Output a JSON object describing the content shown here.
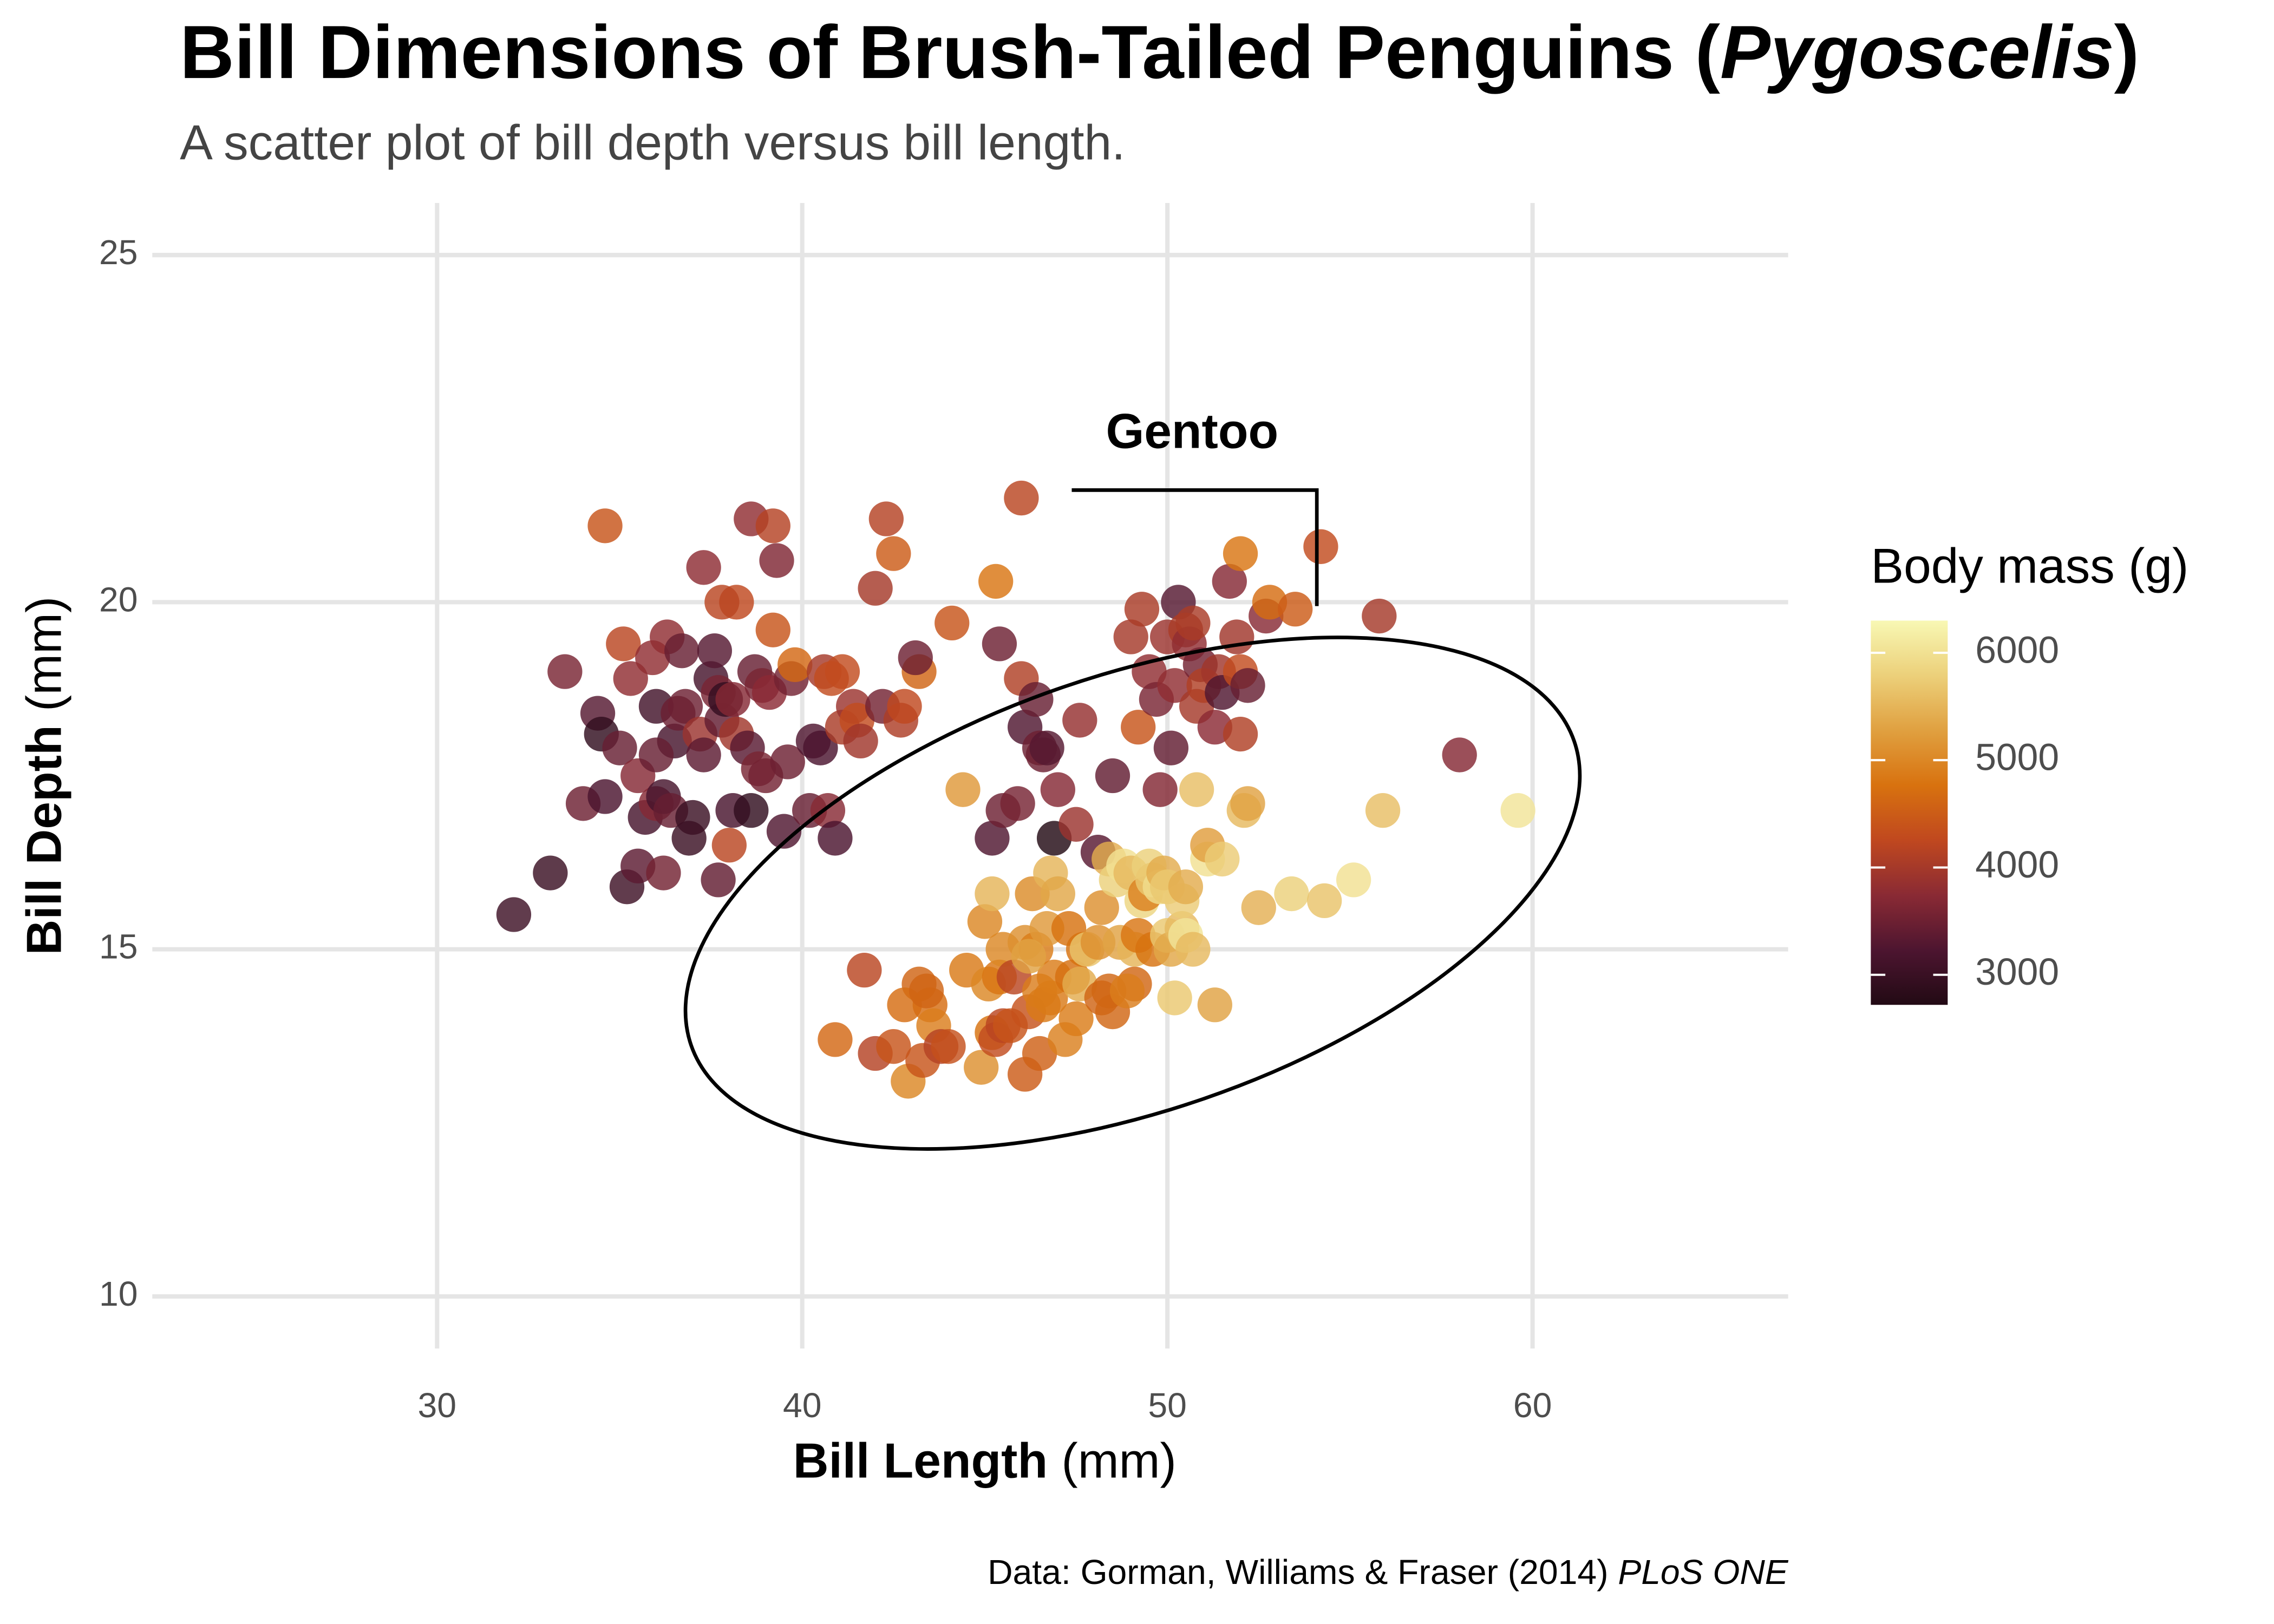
{
  "chart_data": {
    "type": "scatter",
    "title": [
      "Bill Dimensions of Brush-Tailed Penguins (",
      "Pygoscelis",
      ")"
    ],
    "subtitle": "A scatter plot of bill depth versus bill length.",
    "x_label": [
      "Bill Length",
      " (mm)"
    ],
    "y_label": [
      "Bill Depth",
      " (mm)"
    ],
    "caption": [
      "Data: Gorman, Williams & Fraser (2014) ",
      "PLoS ONE"
    ],
    "annotation": "Gentoo",
    "xlim": [
      22.2,
      67.0
    ],
    "xticks": [
      30,
      40,
      50,
      60
    ],
    "ylim": [
      9.25,
      25.75
    ],
    "yticks": [
      10,
      15,
      20,
      25
    ],
    "grid": true,
    "colorbar": {
      "title": "Body mass (g)",
      "lim": [
        2720,
        6300
      ],
      "ticks": [
        3000,
        4000,
        5000,
        6000
      ],
      "colors": [
        "#220a14",
        "#4d1530",
        "#8a2a34",
        "#c0481f",
        "#d8720f",
        "#e0a040",
        "#ecd07a",
        "#f8f8b4"
      ]
    },
    "points": [
      [
        32.1,
        15.5,
        3050
      ],
      [
        33.1,
        16.1,
        3000
      ],
      [
        33.5,
        19.0,
        3600
      ],
      [
        34.0,
        17.1,
        3500
      ],
      [
        34.4,
        18.4,
        3300
      ],
      [
        34.5,
        18.1,
        2900
      ],
      [
        34.6,
        21.1,
        4400
      ],
      [
        34.6,
        17.2,
        3200
      ],
      [
        35.0,
        17.9,
        3450
      ],
      [
        35.1,
        19.4,
        4200
      ],
      [
        35.2,
        15.9,
        3050
      ],
      [
        35.3,
        18.9,
        3800
      ],
      [
        35.5,
        16.2,
        3350
      ],
      [
        35.5,
        17.5,
        3700
      ],
      [
        35.7,
        16.9,
        3150
      ],
      [
        35.9,
        19.2,
        3800
      ],
      [
        36.0,
        17.1,
        3700
      ],
      [
        36.0,
        18.5,
        3100
      ],
      [
        36.2,
        16.1,
        3550
      ],
      [
        36.2,
        17.2,
        3150
      ],
      [
        36.3,
        19.5,
        3800
      ],
      [
        36.4,
        17.0,
        3450
      ],
      [
        36.5,
        18.0,
        3150
      ],
      [
        36.6,
        18.4,
        3475
      ],
      [
        36.7,
        19.3,
        3450
      ],
      [
        36.8,
        18.5,
        3500
      ],
      [
        36.9,
        16.6,
        3000
      ],
      [
        37.0,
        16.9,
        3000
      ],
      [
        37.2,
        18.1,
        3900
      ],
      [
        37.3,
        17.8,
        3350
      ],
      [
        37.3,
        20.5,
        3775
      ],
      [
        37.5,
        18.9,
        3150
      ],
      [
        37.6,
        19.3,
        3300
      ],
      [
        37.7,
        18.7,
        3600
      ],
      [
        37.8,
        18.3,
        3400
      ],
      [
        37.9,
        18.6,
        2950
      ],
      [
        38.1,
        17.0,
        3175
      ],
      [
        38.1,
        18.6,
        3700
      ],
      [
        38.2,
        18.1,
        3950
      ],
      [
        38.2,
        20.0,
        4250
      ],
      [
        38.5,
        17.9,
        3325
      ],
      [
        38.6,
        21.2,
        3800
      ],
      [
        38.6,
        17.0,
        2900
      ],
      [
        38.7,
        19.0,
        3450
      ],
      [
        38.8,
        17.6,
        3600
      ],
      [
        38.9,
        18.8,
        3600
      ],
      [
        39.0,
        17.5,
        3550
      ],
      [
        39.1,
        18.7,
        3750
      ],
      [
        39.2,
        19.6,
        4400
      ],
      [
        39.2,
        21.1,
        4150
      ],
      [
        39.3,
        20.6,
        3650
      ],
      [
        39.5,
        16.7,
        3250
      ],
      [
        39.6,
        17.7,
        3500
      ],
      [
        39.7,
        18.9,
        3550
      ],
      [
        39.8,
        19.1,
        4650
      ],
      [
        40.2,
        17.0,
        3450
      ],
      [
        40.3,
        18.0,
        3250
      ],
      [
        40.5,
        17.9,
        3200
      ],
      [
        40.6,
        19.0,
        4000
      ],
      [
        40.7,
        17.0,
        3725
      ],
      [
        40.9,
        16.6,
        3200
      ],
      [
        41.1,
        19.0,
        4300
      ],
      [
        41.1,
        18.2,
        4050
      ],
      [
        41.4,
        18.5,
        3900
      ],
      [
        41.5,
        18.3,
        4300
      ],
      [
        41.6,
        18.0,
        3950
      ],
      [
        42.0,
        20.2,
        4000
      ],
      [
        42.2,
        18.5,
        3550
      ],
      [
        42.3,
        21.2,
        4150
      ],
      [
        42.5,
        20.7,
        4500
      ],
      [
        42.7,
        18.3,
        4075
      ],
      [
        42.8,
        18.5,
        4250
      ],
      [
        43.2,
        19.0,
        4600
      ],
      [
        43.1,
        19.2,
        3500
      ],
      [
        36.0,
        17.8,
        3450
      ],
      [
        37.8,
        20.0,
        4200
      ],
      [
        44.1,
        19.7,
        4400
      ],
      [
        45.2,
        16.6,
        3250
      ],
      [
        45.5,
        17.0,
        3500
      ],
      [
        45.9,
        17.1,
        3575
      ],
      [
        46.0,
        18.9,
        4100
      ],
      [
        46.1,
        18.2,
        3250
      ],
      [
        46.4,
        18.6,
        3450
      ],
      [
        46.5,
        17.9,
        3500
      ],
      [
        46.6,
        17.8,
        3500
      ],
      [
        46.7,
        17.9,
        3300
      ],
      [
        46.9,
        16.6,
        2700
      ],
      [
        47.0,
        17.3,
        3700
      ],
      [
        47.5,
        16.8,
        3900
      ],
      [
        47.6,
        18.3,
        3850
      ],
      [
        48.1,
        16.4,
        3325
      ],
      [
        48.5,
        17.5,
        3400
      ],
      [
        49.0,
        19.5,
        4000
      ],
      [
        49.2,
        18.2,
        4400
      ],
      [
        49.3,
        19.9,
        4050
      ],
      [
        49.5,
        19.0,
        3800
      ],
      [
        49.7,
        18.6,
        3600
      ],
      [
        49.8,
        17.3,
        3675
      ],
      [
        50.0,
        19.5,
        3900
      ],
      [
        50.1,
        17.9,
        3400
      ],
      [
        50.2,
        18.8,
        3800
      ],
      [
        50.3,
        20.0,
        3300
      ],
      [
        50.5,
        19.6,
        4050
      ],
      [
        50.6,
        19.4,
        3800
      ],
      [
        50.7,
        19.7,
        4050
      ],
      [
        50.8,
        18.5,
        4000
      ],
      [
        50.9,
        19.1,
        3550
      ],
      [
        51.0,
        18.8,
        4100
      ],
      [
        51.3,
        18.2,
        3750
      ],
      [
        51.4,
        19.0,
        3950
      ],
      [
        51.5,
        18.7,
        3250
      ],
      [
        51.7,
        20.3,
        3700
      ],
      [
        51.9,
        19.5,
        3950
      ],
      [
        52.0,
        18.1,
        4100
      ],
      [
        52.0,
        19.0,
        4300
      ],
      [
        52.0,
        20.7,
        4800
      ],
      [
        52.2,
        18.8,
        3450
      ],
      [
        52.7,
        19.8,
        3725
      ],
      [
        52.8,
        20.0,
        4700
      ],
      [
        53.5,
        19.9,
        4500
      ],
      [
        54.2,
        20.8,
        4300
      ],
      [
        55.8,
        19.8,
        4000
      ],
      [
        58.0,
        17.8,
        3700
      ],
      [
        46.0,
        21.5,
        4200
      ],
      [
        45.3,
        20.3,
        4800
      ],
      [
        45.4,
        19.4,
        3500
      ],
      [
        40.8,
        18.9,
        4300
      ],
      [
        37.7,
        16.0,
        3400
      ],
      [
        38.0,
        16.5,
        4200
      ],
      [
        40.9,
        13.7,
        4650
      ],
      [
        41.7,
        14.7,
        4200
      ],
      [
        42.0,
        13.5,
        4150
      ],
      [
        42.5,
        13.6,
        4400
      ],
      [
        42.9,
        13.1,
        5000
      ],
      [
        43.2,
        14.5,
        4600
      ],
      [
        43.3,
        13.4,
        4400
      ],
      [
        43.5,
        14.2,
        4700
      ],
      [
        43.6,
        13.9,
        4900
      ],
      [
        43.8,
        13.6,
        4150
      ],
      [
        44.0,
        13.6,
        4350
      ],
      [
        44.4,
        17.3,
        5200
      ],
      [
        44.5,
        14.7,
        4850
      ],
      [
        44.9,
        13.3,
        5100
      ],
      [
        45.0,
        15.4,
        5000
      ],
      [
        45.1,
        14.5,
        5000
      ],
      [
        45.2,
        13.8,
        4750
      ],
      [
        45.2,
        15.8,
        5500
      ],
      [
        45.3,
        13.7,
        4300
      ],
      [
        45.4,
        14.6,
        4800
      ],
      [
        45.5,
        13.9,
        4200
      ],
      [
        45.5,
        15.0,
        5000
      ],
      [
        45.7,
        13.9,
        4400
      ],
      [
        45.8,
        14.6,
        4200
      ],
      [
        46.1,
        13.2,
        4500
      ],
      [
        46.1,
        15.1,
        5100
      ],
      [
        46.2,
        14.1,
        4375
      ],
      [
        46.3,
        15.8,
        5050
      ],
      [
        46.4,
        15.0,
        4875
      ],
      [
        46.5,
        14.4,
        4900
      ],
      [
        46.5,
        13.5,
        4550
      ],
      [
        46.6,
        14.2,
        4850
      ],
      [
        46.7,
        15.3,
        5200
      ],
      [
        46.8,
        14.3,
        4850
      ],
      [
        46.8,
        16.1,
        5500
      ],
      [
        46.9,
        14.6,
        4875
      ],
      [
        47.2,
        13.7,
        4925
      ],
      [
        47.3,
        15.3,
        4750
      ],
      [
        47.4,
        14.6,
        4725
      ],
      [
        47.5,
        14.0,
        4875
      ],
      [
        47.6,
        14.5,
        5400
      ],
      [
        47.7,
        15.0,
        4750
      ],
      [
        47.8,
        15.0,
        5650
      ],
      [
        48.1,
        15.1,
        5100
      ],
      [
        48.2,
        14.3,
        4600
      ],
      [
        48.2,
        15.6,
        5100
      ],
      [
        48.4,
        14.4,
        4625
      ],
      [
        48.4,
        16.3,
        5400
      ],
      [
        48.5,
        14.1,
        4625
      ],
      [
        48.6,
        16.0,
        5800
      ],
      [
        48.7,
        15.1,
        5300
      ],
      [
        48.8,
        16.2,
        6000
      ],
      [
        49.0,
        16.1,
        5550
      ],
      [
        49.1,
        14.5,
        4625
      ],
      [
        49.1,
        15.0,
        5500
      ],
      [
        49.2,
        15.2,
        4800
      ],
      [
        49.3,
        15.7,
        5850
      ],
      [
        49.4,
        15.8,
        4925
      ],
      [
        49.5,
        16.2,
        5800
      ],
      [
        49.6,
        15.0,
        4750
      ],
      [
        49.6,
        16.0,
        5700
      ],
      [
        49.8,
        15.9,
        5950
      ],
      [
        49.9,
        16.1,
        5400
      ],
      [
        50.0,
        15.2,
        5700
      ],
      [
        50.0,
        15.9,
        5700
      ],
      [
        50.1,
        15.0,
        5350
      ],
      [
        50.2,
        14.3,
        5700
      ],
      [
        50.4,
        15.3,
        5550
      ],
      [
        50.4,
        15.7,
        5750
      ],
      [
        50.5,
        15.9,
        5400
      ],
      [
        50.5,
        15.2,
        6050
      ],
      [
        50.7,
        15.0,
        5550
      ],
      [
        50.8,
        17.3,
        5600
      ],
      [
        51.1,
        16.3,
        6000
      ],
      [
        51.1,
        16.5,
        5250
      ],
      [
        51.3,
        14.2,
        5300
      ],
      [
        51.5,
        16.3,
        5750
      ],
      [
        52.1,
        17.0,
        5550
      ],
      [
        52.2,
        17.1,
        5300
      ],
      [
        52.5,
        15.6,
        5450
      ],
      [
        53.4,
        15.8,
        5800
      ],
      [
        54.3,
        15.7,
        5650
      ],
      [
        55.1,
        16.0,
        6000
      ],
      [
        55.9,
        17.0,
        5600
      ],
      [
        59.6,
        17.0,
        6050
      ],
      [
        42.8,
        14.2,
        4700
      ],
      [
        43.4,
        14.4,
        4600
      ],
      [
        46.2,
        14.9,
        5300
      ],
      [
        47.0,
        15.8,
        5350
      ],
      [
        48.9,
        14.4,
        4900
      ]
    ]
  }
}
